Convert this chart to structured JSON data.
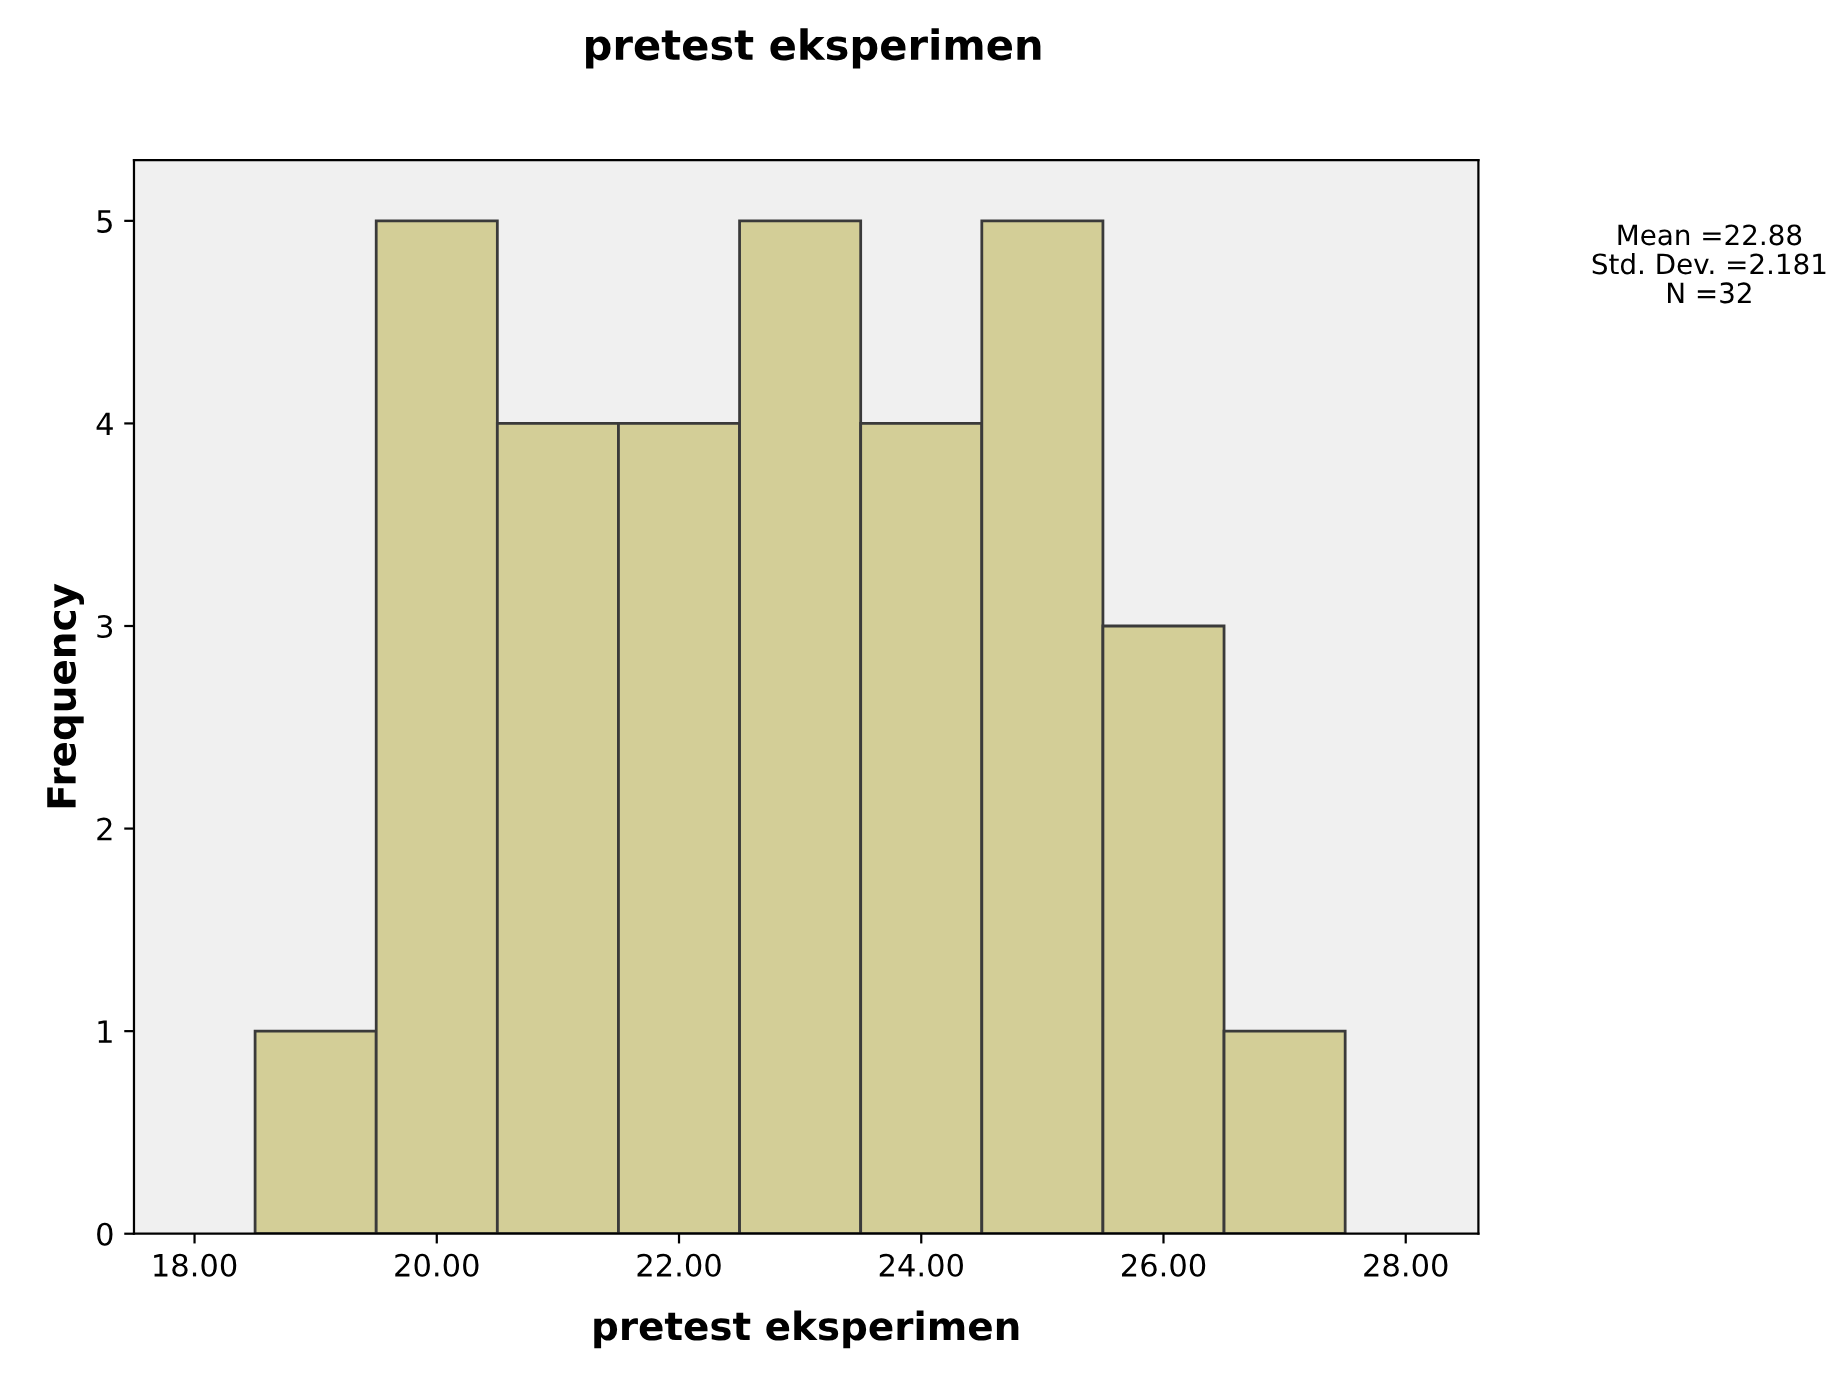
{
  "chart_data": {
    "type": "histogram",
    "title": "pretest eksperimen",
    "xlabel": "pretest eksperimen",
    "ylabel": "Frequency",
    "bins": [
      18.5,
      19.5,
      20.5,
      21.5,
      22.5,
      23.5,
      24.5,
      25.5,
      26.5,
      27.5
    ],
    "values": [
      1,
      5,
      4,
      4,
      5,
      4,
      5,
      3,
      1
    ],
    "color": "#d3ce97",
    "xlim": [
      17.5,
      28.6
    ],
    "xticks": [
      {
        "value": 18,
        "label": "18.00"
      },
      {
        "value": 20,
        "label": "20.00"
      },
      {
        "value": 22,
        "label": "22.00"
      },
      {
        "value": 24,
        "label": "24.00"
      },
      {
        "value": 26,
        "label": "26.00"
      },
      {
        "value": 28,
        "label": "28.00"
      }
    ],
    "ylim": [
      0,
      5.3
    ],
    "yticks": [
      0,
      1,
      2,
      3,
      4,
      5
    ],
    "grid": false,
    "legend": false,
    "annotations": [
      "Mean =22.88",
      "Std. Dev. =2.181",
      "N =32"
    ]
  }
}
